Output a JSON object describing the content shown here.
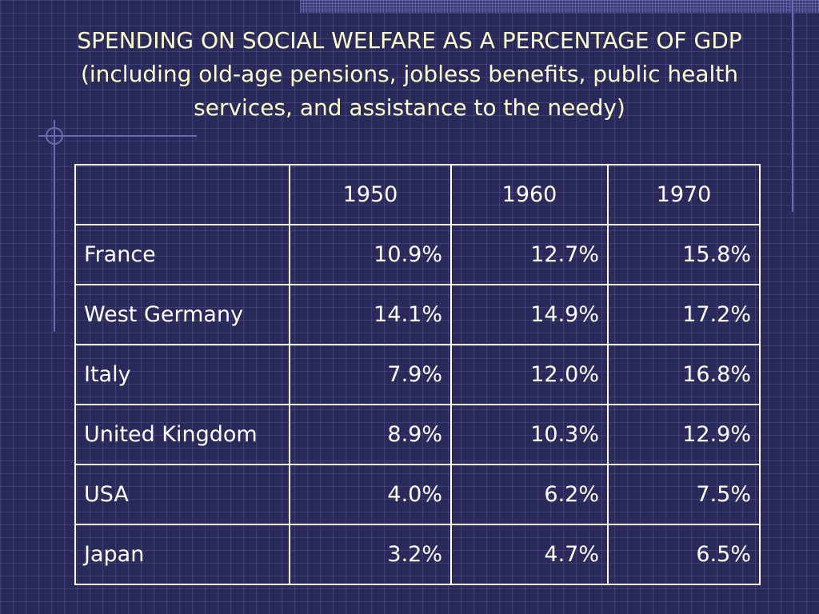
{
  "title": {
    "line1": "SPENDING ON SOCIAL WELFARE AS A PERCENTAGE OF GDP",
    "line2": "(including old-age pensions, jobless benefits, public health",
    "line3": "services, and assistance to the needy)"
  },
  "colors": {
    "background": "#2a2a5a",
    "title_text": "#ffffcc",
    "table_text": "#ffffff",
    "accent_lines": "#6a6ab8"
  },
  "table": {
    "headers": [
      "",
      "1950",
      "1960",
      "1970"
    ],
    "rows": [
      {
        "country": "France",
        "values": [
          "10.9%",
          "12.7%",
          "15.8%"
        ]
      },
      {
        "country": "West Germany",
        "values": [
          "14.1%",
          "14.9%",
          "17.2%"
        ]
      },
      {
        "country": "Italy",
        "values": [
          "7.9%",
          "12.0%",
          "16.8%"
        ]
      },
      {
        "country": "United Kingdom",
        "values": [
          "8.9%",
          "10.3%",
          "12.9%"
        ]
      },
      {
        "country": "USA",
        "values": [
          "4.0%",
          "6.2%",
          "7.5%"
        ]
      },
      {
        "country": "Japan",
        "values": [
          "3.2%",
          "4.7%",
          "6.5%"
        ]
      }
    ]
  }
}
